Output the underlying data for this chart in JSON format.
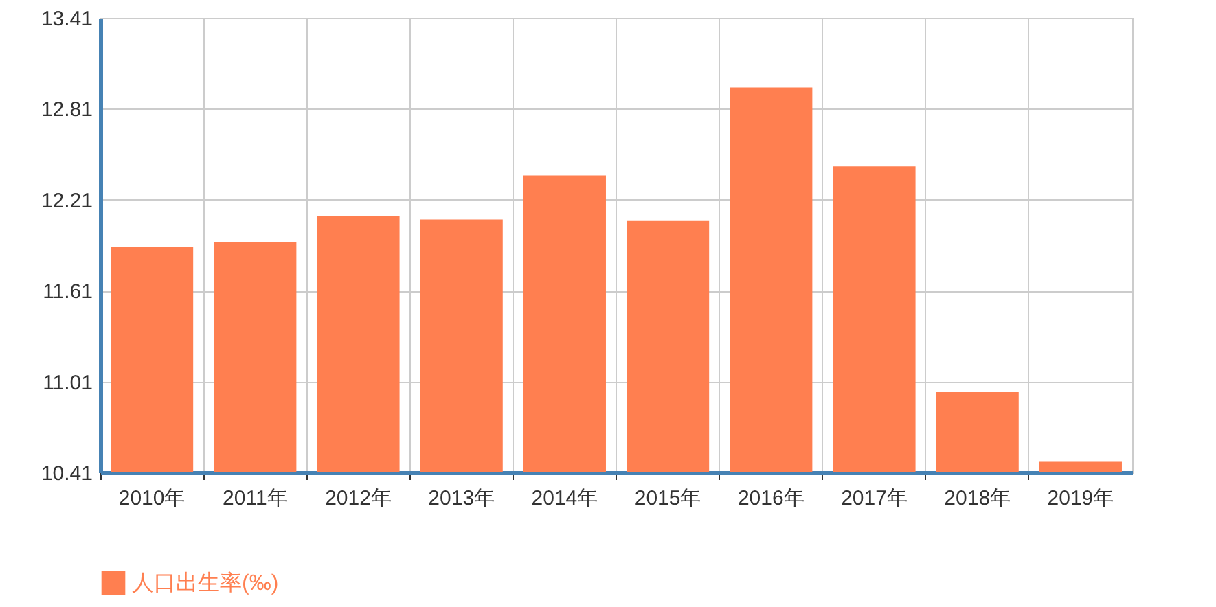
{
  "chart_data": {
    "type": "bar",
    "categories": [
      "2010年",
      "2011年",
      "2012年",
      "2013年",
      "2014年",
      "2015年",
      "2016年",
      "2017年",
      "2018年",
      "2019年"
    ],
    "series": [
      {
        "name": "人口出生率(‰)",
        "color": "#ff7f50",
        "values": [
          11.9,
          11.93,
          12.1,
          12.08,
          12.37,
          12.07,
          12.95,
          12.43,
          10.94,
          10.48
        ]
      }
    ],
    "ylim": [
      10.41,
      13.41
    ],
    "yticks": [
      10.41,
      11.01,
      11.61,
      12.21,
      12.81,
      13.41
    ],
    "grid": true,
    "legend": "bottom"
  }
}
